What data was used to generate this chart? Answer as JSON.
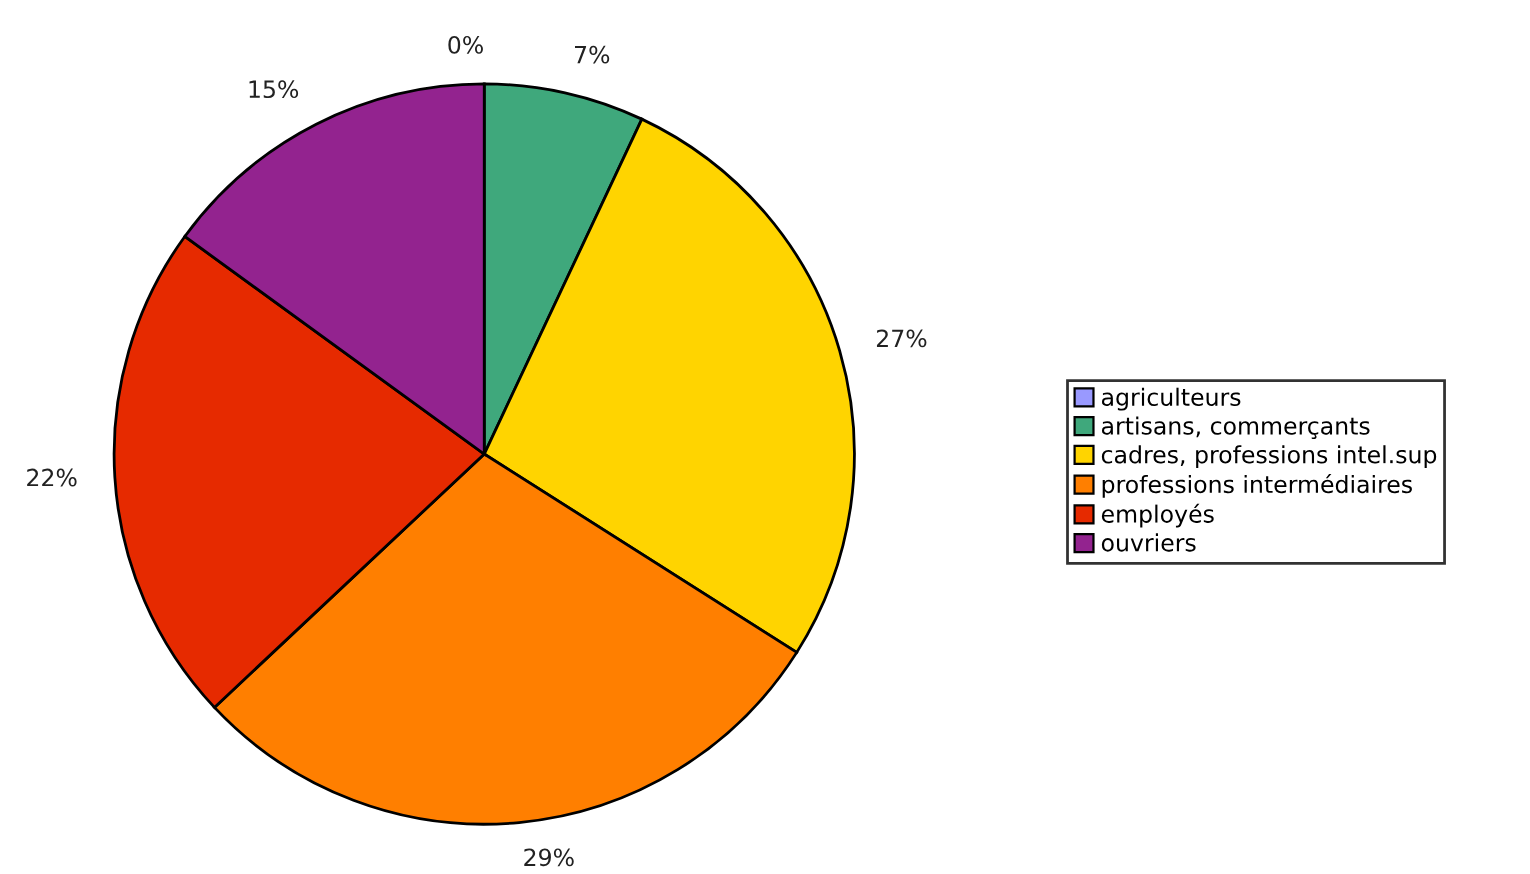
{
  "chart_data": {
    "type": "pie",
    "categories": [
      "agriculteurs",
      "artisans, commerçants",
      "cadres, professions intel.sup",
      "professions intermédiaires",
      "employés",
      "ouvriers"
    ],
    "values": [
      0,
      7,
      27,
      29,
      22,
      15
    ],
    "value_labels": [
      "0%",
      "7%",
      "27%",
      "29%",
      "22%",
      "15%"
    ],
    "colors": [
      "#9999ff",
      "#3fa87c",
      "#ffd400",
      "#ff7f00",
      "#e62a00",
      "#93238f"
    ],
    "legend": "right"
  }
}
